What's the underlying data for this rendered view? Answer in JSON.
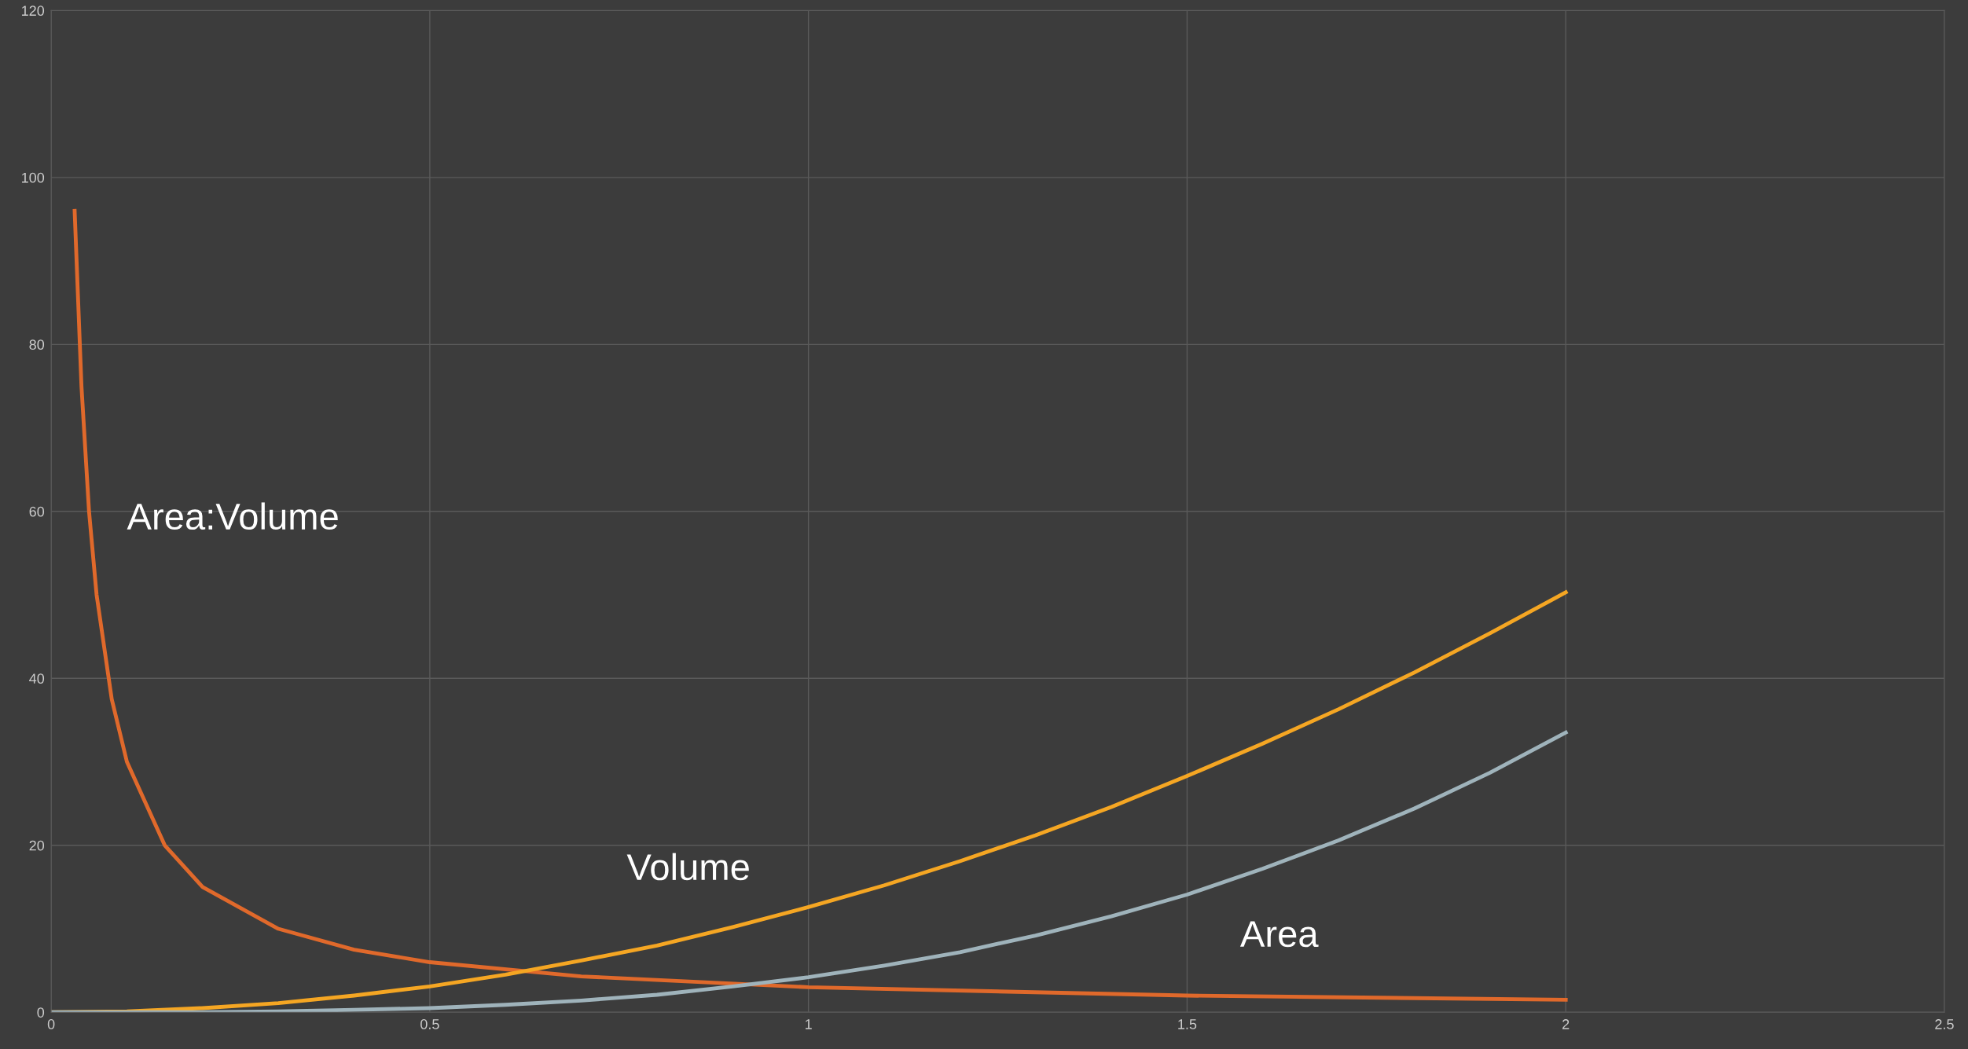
{
  "chart_data": {
    "type": "line",
    "series": [
      {
        "name": "Area:Volume",
        "color": "#e0692b",
        "x": [
          0.031,
          0.04,
          0.05,
          0.06,
          0.08,
          0.1,
          0.15,
          0.2,
          0.3,
          0.4,
          0.5,
          0.7,
          1,
          1.5,
          2
        ],
        "values": [
          96,
          75,
          60,
          50,
          37.5,
          30,
          20,
          15,
          10,
          7.5,
          6,
          4.3,
          3,
          2,
          1.5
        ]
      },
      {
        "name": "Volume",
        "color": "#f5a623",
        "x": [
          0,
          0.1,
          0.2,
          0.3,
          0.4,
          0.5,
          0.6,
          0.7,
          0.8,
          0.9,
          1,
          1.1,
          1.2,
          1.3,
          1.4,
          1.5,
          1.6,
          1.7,
          1.8,
          1.9,
          2
        ],
        "values": [
          0,
          0.1,
          0.5,
          1.1,
          2,
          3.1,
          4.5,
          6.2,
          8,
          10.2,
          12.6,
          15.2,
          18.1,
          21.2,
          24.6,
          28.3,
          32.2,
          36.3,
          40.7,
          45.4,
          50.3
        ]
      },
      {
        "name": "Area",
        "color": "#9fb3bb",
        "x": [
          0,
          0.1,
          0.2,
          0.3,
          0.4,
          0.5,
          0.6,
          0.7,
          0.8,
          0.9,
          1,
          1.1,
          1.2,
          1.3,
          1.4,
          1.5,
          1.6,
          1.7,
          1.8,
          1.9,
          2
        ],
        "values": [
          0,
          0,
          0,
          0.1,
          0.3,
          0.5,
          0.9,
          1.4,
          2.1,
          3.1,
          4.2,
          5.6,
          7.2,
          9.2,
          11.5,
          14.1,
          17.2,
          20.6,
          24.4,
          28.7,
          33.5
        ]
      }
    ],
    "xlim": [
      0,
      2.5
    ],
    "xticks": [
      0,
      0.5,
      1,
      1.5,
      2,
      2.5
    ],
    "ylim": [
      0,
      120
    ],
    "yticks": [
      0,
      20,
      40,
      60,
      80,
      100,
      120
    ],
    "grid": true,
    "marker": "none",
    "line_style": "solid"
  }
}
